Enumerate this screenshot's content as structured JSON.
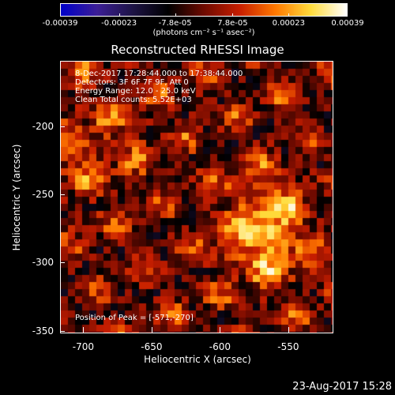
{
  "colorbar": {
    "ticks": [
      "-0.00039",
      "-0.00023",
      "-7.8e-05",
      "7.8e-05",
      "0.00023",
      "0.00039"
    ],
    "tick_values": [
      -0.00039,
      -0.00023,
      -7.8e-05,
      7.8e-05,
      0.00023,
      0.00039
    ],
    "units": "(photons cm⁻² s⁻¹ asec⁻²)",
    "colors": [
      "#0000c8",
      "#3c1e96",
      "#1e1446",
      "#000000",
      "#6e0a00",
      "#c81e00",
      "#ff7800",
      "#ffdc3c",
      "#ffffff"
    ]
  },
  "title": "Reconstructed RHESSI Image",
  "overlay": {
    "line1": "8-Dec-2017 17:28:44.000 to 17:38:44.000",
    "line2": "Detectors: 3F 6F 7F 9F, Att 0",
    "line3": "Energy Range: 12.0 - 25.0 keV",
    "line4": "Clean    Total counts: 5.52E+03",
    "peak": "Position of Peak = [-571,-270]"
  },
  "axes": {
    "x_label": "Heliocentric X (arcsec)",
    "y_label": "Heliocentric Y (arcsec)",
    "x_ticks": [
      "-700",
      "-650",
      "-600",
      "-550"
    ],
    "x_tick_values": [
      -700,
      -650,
      -600,
      -550
    ],
    "y_ticks": [
      "-200",
      "-250",
      "-300",
      "-350"
    ],
    "y_tick_values": [
      -200,
      -250,
      -300,
      -350
    ],
    "x_range": [
      -717,
      -517
    ],
    "y_range": [
      -352,
      -152
    ]
  },
  "timestamp": "23-Aug-2017 15:28"
}
